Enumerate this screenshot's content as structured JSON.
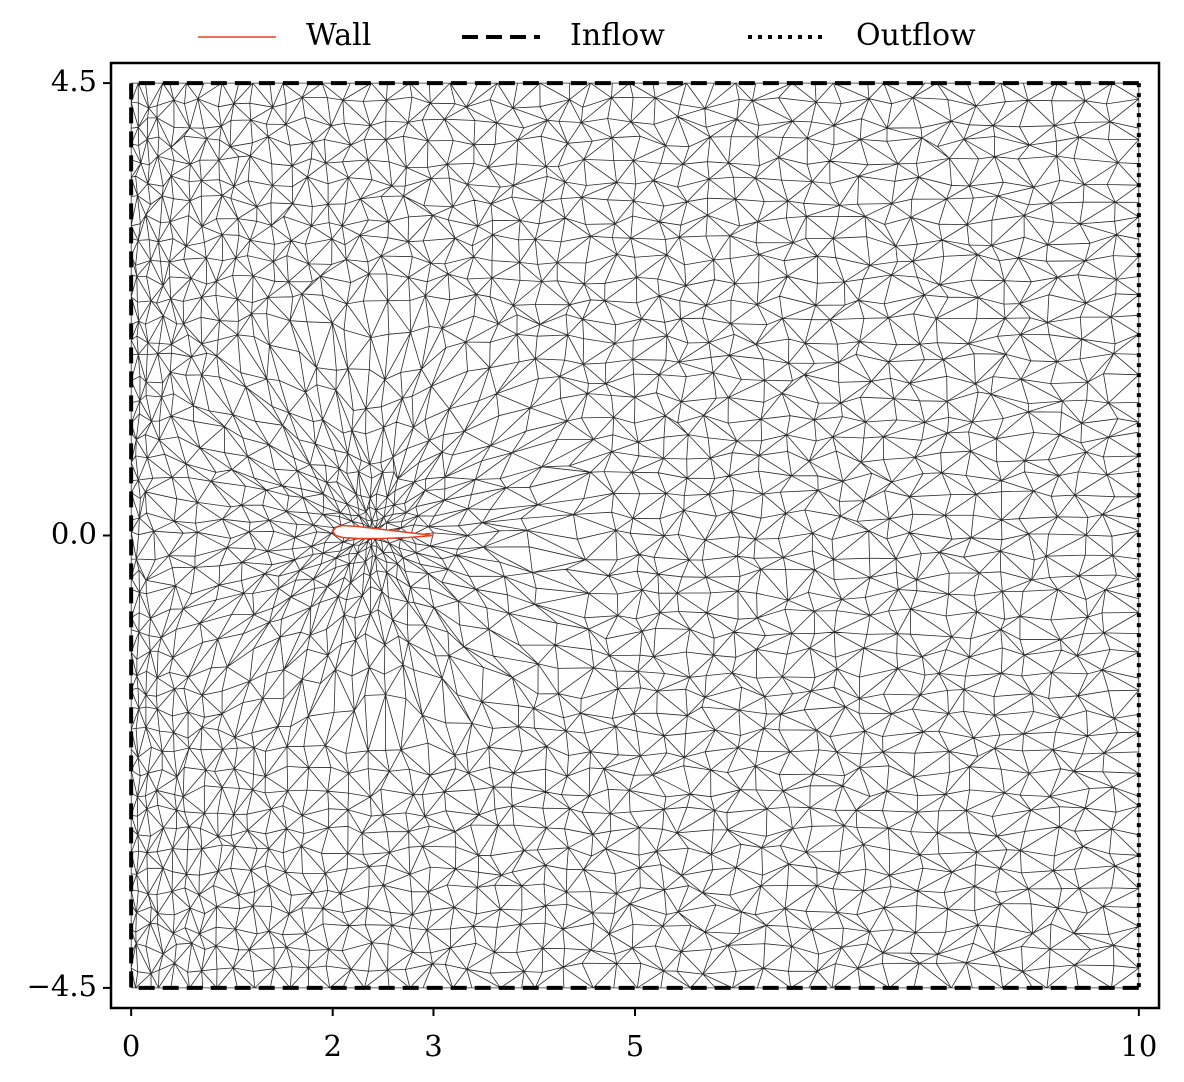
{
  "chart_data": {
    "type": "mesh",
    "xlim": [
      -0.2,
      10.2
    ],
    "ylim": [
      -4.7,
      4.7
    ],
    "xticks": [
      0,
      2,
      3,
      5,
      10
    ],
    "yticks": [
      {
        "value": -4.5,
        "label": "−4.5"
      },
      {
        "value": 0,
        "label": "0.0"
      },
      4.5
    ],
    "series": [
      {
        "name": "Wall",
        "color": "#e8401c",
        "linestyle": "solid",
        "x": [
          3,
          2.75,
          2.5,
          2.25,
          2.1,
          2.03,
          2,
          2.03,
          2.1,
          2.25,
          2.5,
          2.75,
          3
        ],
        "values": [
          0,
          0.03,
          0.06,
          0.09,
          0.1,
          0.08,
          0.04,
          0,
          -0.02,
          -0.03,
          -0.03,
          -0.02,
          0
        ]
      },
      {
        "name": "Inflow",
        "color": "#000000",
        "linestyle": "dashed",
        "x": [
          10,
          0,
          0,
          10
        ],
        "values": [
          4.5,
          4.5,
          -4.5,
          -4.5
        ]
      },
      {
        "name": "Outflow",
        "color": "#000000",
        "linestyle": "dotted",
        "x": [
          10,
          10
        ],
        "values": [
          4.5,
          -4.5
        ]
      }
    ]
  }
}
